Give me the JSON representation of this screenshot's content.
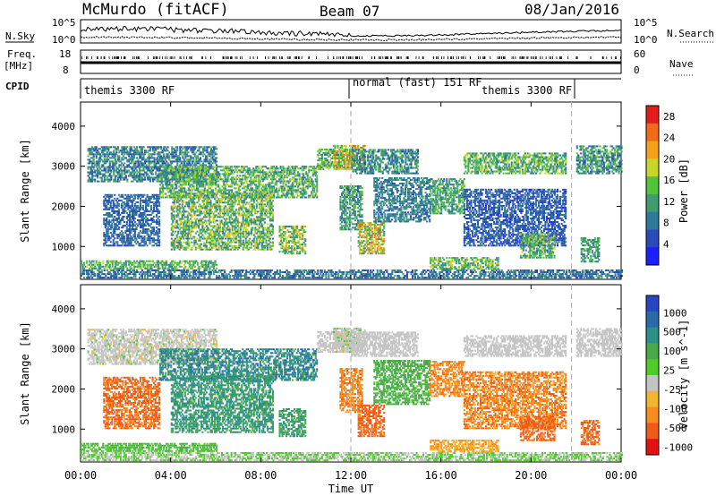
{
  "header": {
    "station": "McMurdo (fitACF)",
    "beam": "Beam 07",
    "date": "08/Jan/2016"
  },
  "side_labels": {
    "nsky": "N.Sky",
    "nsearch": "N.Search",
    "freq": "Freq.",
    "freq_unit": "[MHz]",
    "cpid": "CPID",
    "nave": "Nave"
  },
  "noise_ticks": {
    "left_top": "10^5",
    "left_bottom": "10^0",
    "right_top": "10^5",
    "right_bottom": "10^0"
  },
  "freq_ticks": {
    "left": [
      "18",
      "8"
    ],
    "right": [
      "60",
      "0"
    ]
  },
  "cpid_segments": [
    {
      "label": "themis 3300 RF",
      "start": 0,
      "end": 12
    },
    {
      "label": "normal (fast) 151 RF",
      "start": 12,
      "end": 22
    },
    {
      "label": "themis 3300 RF",
      "start": 16.7,
      "end": 22
    }
  ],
  "colors": {
    "power_scale": [
      "#1a20ff",
      "#2a4ab8",
      "#2e7a9a",
      "#3f9c6f",
      "#52c43c",
      "#c8d62a",
      "#f4a21c",
      "#f06a18",
      "#e21b1b"
    ],
    "velocity_scale": [
      "#2646c4",
      "#2a6aa8",
      "#2a9088",
      "#4aaa4a",
      "#50cc2a",
      "#c4c4c4",
      "#f2b62c",
      "#f58c1c",
      "#f05a18",
      "#e21212"
    ]
  },
  "chart_data": [
    {
      "type": "heatmap",
      "title": "Power",
      "xlabel": "Time UT",
      "ylabel": "Slant Range [km]",
      "x_ticks": [
        "00:00",
        "04:00",
        "08:00",
        "12:00",
        "16:00",
        "20:00",
        "00:00"
      ],
      "xlim_hours": [
        0,
        24
      ],
      "y_ticks": [
        "1000",
        "2000",
        "3000",
        "4000"
      ],
      "ylim": [
        180,
        4600
      ],
      "colorbar": {
        "label": "Power [dB]",
        "ticks": [
          "4",
          "8",
          "12",
          "16",
          "20",
          "24",
          "28"
        ],
        "range": [
          0,
          30
        ]
      },
      "regions": [
        {
          "t0": 0.0,
          "t1": 24.0,
          "r0": 200,
          "r1": 420,
          "val": 8,
          "var": 4
        },
        {
          "t0": 0.0,
          "t1": 6.0,
          "r0": 430,
          "r1": 650,
          "val": 13,
          "var": 5
        },
        {
          "t0": 0.3,
          "t1": 6.0,
          "r0": 2600,
          "r1": 3500,
          "val": 9,
          "var": 5
        },
        {
          "t0": 1.0,
          "t1": 3.5,
          "r0": 1000,
          "r1": 2300,
          "val": 7,
          "var": 3
        },
        {
          "t0": 3.5,
          "t1": 10.5,
          "r0": 2200,
          "r1": 3000,
          "val": 13,
          "var": 6
        },
        {
          "t0": 4.0,
          "t1": 8.5,
          "r0": 900,
          "r1": 2300,
          "val": 14,
          "var": 7
        },
        {
          "t0": 8.8,
          "t1": 10.0,
          "r0": 800,
          "r1": 1500,
          "val": 16,
          "var": 7
        },
        {
          "t0": 10.5,
          "t1": 12.0,
          "r0": 2900,
          "r1": 3400,
          "val": 14,
          "var": 6
        },
        {
          "t0": 11.2,
          "t1": 12.6,
          "r0": 2900,
          "r1": 3500,
          "val": 18,
          "var": 8
        },
        {
          "t0": 11.5,
          "t1": 12.5,
          "r0": 1400,
          "r1": 2500,
          "val": 11,
          "var": 5
        },
        {
          "t0": 12.3,
          "t1": 13.5,
          "r0": 800,
          "r1": 1600,
          "val": 18,
          "var": 8
        },
        {
          "t0": 12.0,
          "t1": 15.0,
          "r0": 2800,
          "r1": 3400,
          "val": 10,
          "var": 5
        },
        {
          "t0": 13.0,
          "t1": 15.5,
          "r0": 1600,
          "r1": 2700,
          "val": 9,
          "var": 4
        },
        {
          "t0": 15.5,
          "t1": 17.0,
          "r0": 1800,
          "r1": 2700,
          "val": 12,
          "var": 5
        },
        {
          "t0": 15.5,
          "t1": 18.5,
          "r0": 420,
          "r1": 700,
          "val": 14,
          "var": 6
        },
        {
          "t0": 17.0,
          "t1": 21.5,
          "r0": 2800,
          "r1": 3300,
          "val": 13,
          "var": 6
        },
        {
          "t0": 17.0,
          "t1": 21.5,
          "r0": 1000,
          "r1": 2400,
          "val": 6,
          "var": 3
        },
        {
          "t0": 19.5,
          "t1": 21.0,
          "r0": 700,
          "r1": 1300,
          "val": 13,
          "var": 6
        },
        {
          "t0": 22.0,
          "t1": 24.0,
          "r0": 2800,
          "r1": 3500,
          "val": 11,
          "var": 6
        },
        {
          "t0": 22.2,
          "t1": 23.0,
          "r0": 600,
          "r1": 1200,
          "val": 12,
          "var": 5
        }
      ]
    },
    {
      "type": "heatmap",
      "title": "Velocity",
      "xlabel": "Time UT",
      "ylabel": "Slant Range [km]",
      "x_ticks": [
        "00:00",
        "04:00",
        "08:00",
        "12:00",
        "16:00",
        "20:00",
        "00:00"
      ],
      "xlim_hours": [
        0,
        24
      ],
      "y_ticks": [
        "1000",
        "2000",
        "3000",
        "4000"
      ],
      "ylim": [
        180,
        4600
      ],
      "colorbar": {
        "label": "Velocity [m s^-1]",
        "ticks": [
          "1000",
          "500",
          "100",
          "25",
          "-25",
          "-100",
          "-500",
          "-1000"
        ]
      },
      "regions": [
        {
          "t0": 0.0,
          "t1": 24.0,
          "r0": 200,
          "r1": 420,
          "val": 25,
          "var": 30
        },
        {
          "t0": 0.0,
          "t1": 6.0,
          "r0": 430,
          "r1": 650,
          "val": 90,
          "var": 60
        },
        {
          "t0": 0.3,
          "t1": 6.0,
          "r0": 2600,
          "r1": 3500,
          "val": 0,
          "var": 30
        },
        {
          "t0": 1.0,
          "t1": 3.5,
          "r0": 1000,
          "r1": 2300,
          "val": -300,
          "var": 150
        },
        {
          "t0": 3.5,
          "t1": 10.5,
          "r0": 2200,
          "r1": 3000,
          "val": 400,
          "var": 250
        },
        {
          "t0": 4.0,
          "t1": 8.5,
          "r0": 900,
          "r1": 2300,
          "val": 300,
          "var": 200
        },
        {
          "t0": 8.8,
          "t1": 10.0,
          "r0": 800,
          "r1": 1500,
          "val": 250,
          "var": 150
        },
        {
          "t0": 10.5,
          "t1": 12.0,
          "r0": 2900,
          "r1": 3400,
          "val": 0,
          "var": 20
        },
        {
          "t0": 11.2,
          "t1": 12.6,
          "r0": 2900,
          "r1": 3500,
          "val": 0,
          "var": 30
        },
        {
          "t0": 11.5,
          "t1": 12.5,
          "r0": 1400,
          "r1": 2500,
          "val": -200,
          "var": 100
        },
        {
          "t0": 12.3,
          "t1": 13.5,
          "r0": 800,
          "r1": 1600,
          "val": -300,
          "var": 100
        },
        {
          "t0": 12.0,
          "t1": 15.0,
          "r0": 2800,
          "r1": 3400,
          "val": 0,
          "var": 20
        },
        {
          "t0": 13.0,
          "t1": 15.5,
          "r0": 1600,
          "r1": 2700,
          "val": 150,
          "var": 80
        },
        {
          "t0": 15.5,
          "t1": 17.0,
          "r0": 1800,
          "r1": 2700,
          "val": -200,
          "var": 80
        },
        {
          "t0": 15.5,
          "t1": 18.5,
          "r0": 420,
          "r1": 700,
          "val": -100,
          "var": 50
        },
        {
          "t0": 17.0,
          "t1": 21.5,
          "r0": 2800,
          "r1": 3300,
          "val": 0,
          "var": 20
        },
        {
          "t0": 17.0,
          "t1": 21.5,
          "r0": 1000,
          "r1": 2400,
          "val": -200,
          "var": 150
        },
        {
          "t0": 19.5,
          "t1": 21.0,
          "r0": 700,
          "r1": 1300,
          "val": -300,
          "var": 100
        },
        {
          "t0": 22.0,
          "t1": 24.0,
          "r0": 2800,
          "r1": 3500,
          "val": 0,
          "var": 20
        },
        {
          "t0": 22.2,
          "t1": 23.0,
          "r0": 600,
          "r1": 1200,
          "val": -300,
          "var": 100
        }
      ]
    }
  ]
}
